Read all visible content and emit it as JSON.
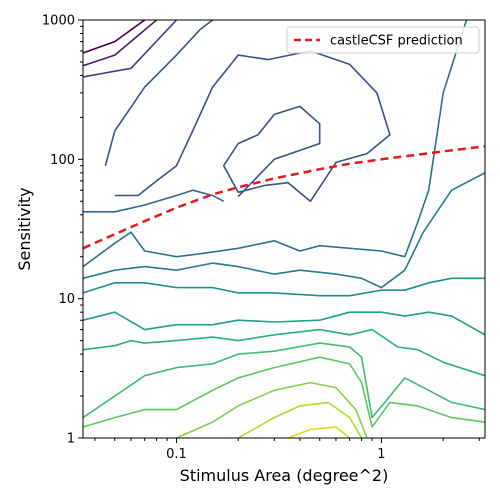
{
  "chart_data": {
    "type": "contour",
    "xlabel": "Stimulus Area (degree^2)",
    "ylabel": "Sensitivity",
    "xscale": "log",
    "yscale": "log",
    "xlim": [
      0.035,
      3.2
    ],
    "ylim": [
      1,
      1000
    ],
    "x_ticks": [
      {
        "value": 0.1,
        "label": "0.1"
      },
      {
        "value": 1,
        "label": "1"
      }
    ],
    "y_ticks": [
      {
        "value": 1,
        "label": "1"
      },
      {
        "value": 10,
        "label": "10"
      },
      {
        "value": 100,
        "label": "100"
      },
      {
        "value": 1000,
        "label": "1000"
      }
    ],
    "legend": {
      "position": "top-right",
      "entries": [
        {
          "label": "castleCSF prediction",
          "color": "#e41a1c",
          "style": "dashed"
        }
      ]
    },
    "prediction_series": {
      "name": "castleCSF prediction",
      "color": "#e41a1c",
      "points": [
        [
          0.035,
          23
        ],
        [
          0.05,
          29
        ],
        [
          0.07,
          36
        ],
        [
          0.1,
          45
        ],
        [
          0.15,
          56
        ],
        [
          0.2,
          63
        ],
        [
          0.3,
          73
        ],
        [
          0.5,
          85
        ],
        [
          0.7,
          93
        ],
        [
          1.0,
          100
        ],
        [
          1.5,
          108
        ],
        [
          2.0,
          114
        ],
        [
          3.2,
          124
        ]
      ]
    },
    "contour_levels": [
      {
        "color": "#440154",
        "points": [
          [
            0.035,
            580
          ],
          [
            0.05,
            700
          ],
          [
            0.07,
            1000
          ]
        ]
      },
      {
        "color": "#46206b",
        "points": [
          [
            0.035,
            470
          ],
          [
            0.05,
            560
          ],
          [
            0.08,
            1000
          ]
        ]
      },
      {
        "color": "#3f3f88",
        "points": [
          [
            0.035,
            390
          ],
          [
            0.06,
            450
          ],
          [
            0.1,
            1000
          ]
        ]
      },
      {
        "color": "#3b528b",
        "points": [
          [
            0.045,
            90
          ],
          [
            0.05,
            160
          ],
          [
            0.07,
            330
          ],
          [
            0.1,
            560
          ],
          [
            0.13,
            850
          ],
          [
            0.15,
            1000
          ]
        ]
      },
      {
        "color": "#3b528b",
        "points": [
          [
            0.05,
            55
          ],
          [
            0.065,
            55
          ],
          [
            0.08,
            70
          ],
          [
            0.1,
            90
          ],
          [
            0.12,
            160
          ],
          [
            0.15,
            330
          ],
          [
            0.2,
            560
          ],
          [
            0.28,
            520
          ],
          [
            0.45,
            600
          ],
          [
            0.7,
            480
          ],
          [
            0.95,
            300
          ],
          [
            1.1,
            150
          ],
          [
            0.85,
            110
          ],
          [
            0.6,
            95
          ],
          [
            0.45,
            50
          ],
          [
            0.35,
            68
          ],
          [
            0.27,
            65
          ],
          [
            0.2,
            58
          ],
          [
            0.17,
            90
          ],
          [
            0.2,
            130
          ],
          [
            0.25,
            150
          ],
          [
            0.3,
            210
          ],
          [
            0.4,
            240
          ],
          [
            0.5,
            180
          ],
          [
            0.5,
            130
          ],
          [
            0.3,
            100
          ],
          [
            0.2,
            54
          ]
        ]
      },
      {
        "color": "#31688e",
        "points": [
          [
            0.035,
            42
          ],
          [
            0.05,
            42
          ],
          [
            0.07,
            47
          ],
          [
            0.1,
            55
          ],
          [
            0.12,
            60
          ],
          [
            0.15,
            55
          ],
          [
            0.17,
            50
          ]
        ]
      },
      {
        "color": "#2c728e",
        "points": [
          [
            0.035,
            17
          ],
          [
            0.05,
            25
          ],
          [
            0.06,
            30
          ],
          [
            0.07,
            22
          ],
          [
            0.1,
            20
          ],
          [
            0.13,
            21
          ],
          [
            0.2,
            23
          ],
          [
            0.3,
            26
          ],
          [
            0.4,
            22
          ],
          [
            0.5,
            24
          ],
          [
            0.7,
            23
          ],
          [
            1.0,
            22
          ],
          [
            1.3,
            20
          ],
          [
            1.5,
            35
          ],
          [
            1.7,
            60
          ],
          [
            2.0,
            300
          ],
          [
            2.6,
            1000
          ]
        ]
      },
      {
        "color": "#287c8e",
        "points": [
          [
            0.035,
            14
          ],
          [
            0.05,
            16
          ],
          [
            0.07,
            17
          ],
          [
            0.1,
            16
          ],
          [
            0.15,
            18
          ],
          [
            0.2,
            17
          ],
          [
            0.3,
            15
          ],
          [
            0.4,
            16
          ],
          [
            0.6,
            15
          ],
          [
            0.8,
            14
          ],
          [
            1.0,
            12
          ],
          [
            1.3,
            16
          ],
          [
            1.6,
            30
          ],
          [
            2.2,
            60
          ],
          [
            3.2,
            80
          ]
        ]
      },
      {
        "color": "#21908d",
        "points": [
          [
            0.035,
            11
          ],
          [
            0.05,
            13
          ],
          [
            0.07,
            13
          ],
          [
            0.1,
            12
          ],
          [
            0.15,
            12
          ],
          [
            0.2,
            11
          ],
          [
            0.3,
            11
          ],
          [
            0.5,
            10.5
          ],
          [
            0.7,
            10.5
          ],
          [
            1.0,
            11.5
          ],
          [
            1.3,
            11.5
          ],
          [
            1.7,
            13
          ],
          [
            2.2,
            14
          ],
          [
            3.2,
            14
          ]
        ]
      },
      {
        "color": "#1fa088",
        "points": [
          [
            0.035,
            7
          ],
          [
            0.05,
            8
          ],
          [
            0.07,
            6
          ],
          [
            0.1,
            6.5
          ],
          [
            0.15,
            6.5
          ],
          [
            0.2,
            7
          ],
          [
            0.3,
            6.8
          ],
          [
            0.5,
            7
          ],
          [
            0.7,
            8
          ],
          [
            1.0,
            8
          ],
          [
            1.3,
            7.5
          ],
          [
            1.7,
            8
          ],
          [
            2.2,
            7.5
          ],
          [
            3.2,
            5.5
          ]
        ]
      },
      {
        "color": "#28ae80",
        "points": [
          [
            0.035,
            4.3
          ],
          [
            0.05,
            4.6
          ],
          [
            0.06,
            5
          ],
          [
            0.07,
            4.8
          ],
          [
            0.1,
            5
          ],
          [
            0.15,
            5.3
          ],
          [
            0.2,
            5
          ],
          [
            0.3,
            5.5
          ],
          [
            0.5,
            6
          ],
          [
            0.7,
            5.5
          ],
          [
            0.9,
            6
          ],
          [
            1.2,
            4.5
          ],
          [
            1.5,
            4.3
          ],
          [
            2.0,
            3.5
          ],
          [
            3.2,
            2.8
          ]
        ]
      },
      {
        "color": "#3fbc73",
        "points": [
          [
            0.035,
            1.4
          ],
          [
            0.05,
            2
          ],
          [
            0.07,
            2.8
          ],
          [
            0.1,
            3.2
          ],
          [
            0.15,
            3.4
          ],
          [
            0.2,
            4
          ],
          [
            0.3,
            4.2
          ],
          [
            0.5,
            4.8
          ],
          [
            0.7,
            4.5
          ],
          [
            0.8,
            3.8
          ],
          [
            0.9,
            1.4
          ],
          [
            1.1,
            2
          ],
          [
            1.3,
            2.7
          ],
          [
            1.7,
            2.2
          ],
          [
            2.2,
            1.8
          ],
          [
            3.2,
            1.6
          ]
        ]
      },
      {
        "color": "#5ec962",
        "points": [
          [
            0.035,
            1.2
          ],
          [
            0.05,
            1.4
          ],
          [
            0.07,
            1.6
          ],
          [
            0.1,
            1.6
          ],
          [
            0.15,
            2.2
          ],
          [
            0.2,
            2.7
          ],
          [
            0.3,
            3.2
          ],
          [
            0.5,
            3.8
          ],
          [
            0.7,
            3.4
          ],
          [
            0.8,
            2.5
          ],
          [
            0.9,
            1.2
          ],
          [
            1.1,
            1.8
          ],
          [
            1.5,
            1.7
          ],
          [
            2.2,
            1.4
          ],
          [
            3.2,
            1.3
          ]
        ]
      },
      {
        "color": "#84d44b",
        "points": [
          [
            0.1,
            1.0
          ],
          [
            0.15,
            1.3
          ],
          [
            0.2,
            1.7
          ],
          [
            0.3,
            2.2
          ],
          [
            0.45,
            2.5
          ],
          [
            0.6,
            2.3
          ],
          [
            0.75,
            1.6
          ],
          [
            0.85,
            1.0
          ]
        ]
      },
      {
        "color": "#addc30",
        "points": [
          [
            0.2,
            1.0
          ],
          [
            0.3,
            1.4
          ],
          [
            0.4,
            1.7
          ],
          [
            0.55,
            1.8
          ],
          [
            0.7,
            1.4
          ],
          [
            0.8,
            1.0
          ]
        ]
      },
      {
        "color": "#d0e11c",
        "points": [
          [
            0.35,
            1.0
          ],
          [
            0.45,
            1.15
          ],
          [
            0.6,
            1.2
          ],
          [
            0.7,
            1.0
          ]
        ]
      }
    ]
  }
}
